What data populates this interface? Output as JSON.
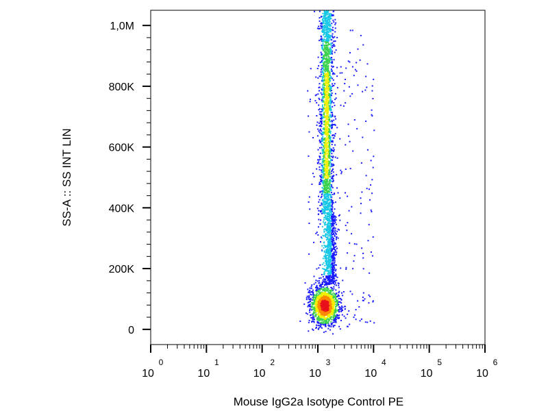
{
  "chart_data": {
    "type": "scatter",
    "subtype": "flow-cytometry-density-dot-plot",
    "xlabel": "Mouse IgG2a Isotype Control PE",
    "ylabel": "SS-A :: SS INT LIN",
    "x_scale": "log",
    "xlim": [
      1,
      1000000
    ],
    "ylim": [
      -50000,
      1050000
    ],
    "x_ticks": [
      {
        "base": "10",
        "exp": "0",
        "value": 1
      },
      {
        "base": "10",
        "exp": "1",
        "value": 10
      },
      {
        "base": "10",
        "exp": "2",
        "value": 100
      },
      {
        "base": "10",
        "exp": "3",
        "value": 1000
      },
      {
        "base": "10",
        "exp": "4",
        "value": 10000
      },
      {
        "base": "10",
        "exp": "5",
        "value": 100000
      },
      {
        "base": "10",
        "exp": "6",
        "value": 1000000
      }
    ],
    "y_ticks": [
      {
        "label": "0",
        "value": 0
      },
      {
        "label": "200K",
        "value": 200000
      },
      {
        "label": "400K",
        "value": 400000
      },
      {
        "label": "600K",
        "value": 600000
      },
      {
        "label": "800K",
        "value": 800000
      },
      {
        "label": "1,0M",
        "value": 1000000
      }
    ],
    "populations": [
      {
        "center_x": 1300,
        "center_y": 80000,
        "density": "highest",
        "color": "#e8101a"
      },
      {
        "center_x": 1400,
        "center_y": 650000,
        "density": "high",
        "color": "#7fd235"
      },
      {
        "center_x": 1900,
        "center_y": 250000,
        "density": "medium",
        "color": "#1aa0e8"
      }
    ],
    "density_colors": [
      "#1a1aff",
      "#19c8e6",
      "#3cd24e",
      "#f0f000",
      "#ff8a00",
      "#e8101a"
    ],
    "grid": false,
    "legend": "none"
  }
}
